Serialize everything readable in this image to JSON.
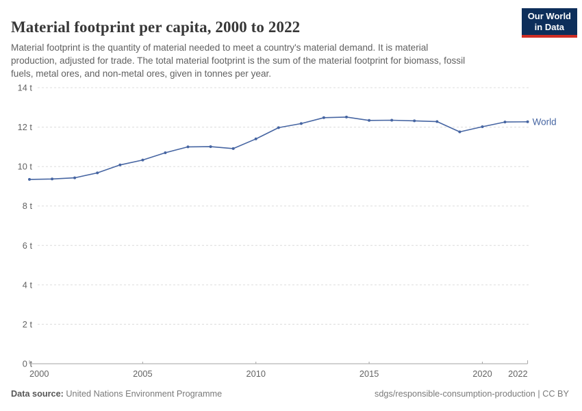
{
  "header": {
    "title": "Material footprint per capita, 2000 to 2022",
    "subtitle_lines": [
      "Material footprint is the quantity of material needed to meet a country's material demand. It is material",
      "production, adjusted for trade. The total material footprint is the sum of the material footprint for biomass, fossil",
      "fuels, metal ores, and non-metal ores, given in tonnes per year."
    ],
    "logo": {
      "line1": "Our World",
      "line2": "in Data"
    }
  },
  "chart_data": {
    "type": "line",
    "title": "Material footprint per capita, 2000 to 2022",
    "xlabel": "",
    "ylabel": "",
    "unit": "t",
    "x": [
      2000,
      2001,
      2002,
      2003,
      2004,
      2005,
      2006,
      2007,
      2008,
      2009,
      2010,
      2011,
      2012,
      2013,
      2014,
      2015,
      2016,
      2017,
      2018,
      2019,
      2020,
      2021,
      2022
    ],
    "series": [
      {
        "name": "World",
        "values": [
          9.35,
          9.37,
          9.43,
          9.68,
          10.08,
          10.33,
          10.7,
          11.0,
          11.01,
          10.91,
          11.4,
          11.97,
          12.18,
          12.48,
          12.51,
          12.34,
          12.35,
          12.32,
          12.28,
          11.76,
          12.02,
          12.26,
          12.27
        ]
      }
    ],
    "ylim": [
      0,
      14
    ],
    "yticks": [
      0,
      2,
      4,
      6,
      8,
      10,
      12,
      14
    ],
    "ytick_suffix": " t",
    "xticks": [
      2000,
      2005,
      2010,
      2015,
      2020,
      2022
    ],
    "grid": "horizontal-dashed",
    "legend": "end-of-line-label"
  },
  "footer": {
    "source_label": "Data source:",
    "source_value": "United Nations Environment Programme",
    "attribution": "sdgs/responsible-consumption-production | CC BY"
  },
  "colors": {
    "series_world": "#4665a2",
    "grid": "#dcdcdc",
    "axis": "#a3a3a3",
    "tick_text": "#636363",
    "logo_bg": "#0d2e5a",
    "logo_red": "#cf2d24",
    "title_text": "#373737",
    "subtitle_text": "#616161"
  }
}
